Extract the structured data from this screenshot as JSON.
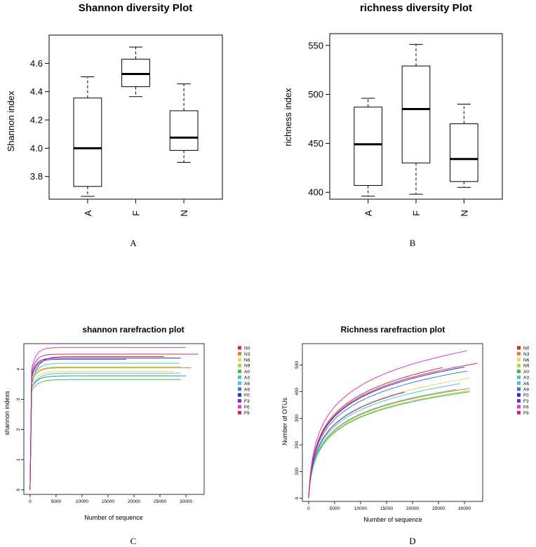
{
  "chart_data": [
    {
      "panel": "A",
      "type": "box",
      "title": "Shannon diversity Plot",
      "xlabel": "",
      "ylabel": "Shannon index",
      "ylim": [
        3.64,
        4.8
      ],
      "yticks": [
        3.8,
        4.0,
        4.2,
        4.4,
        4.6
      ],
      "ytick_labels": [
        "3.8",
        "4.0",
        "4.2",
        "4.4",
        "4.6"
      ],
      "categories": [
        "A",
        "F",
        "N"
      ],
      "boxes": [
        {
          "category": "A",
          "min": 3.66,
          "q1": 3.73,
          "median": 4.0,
          "q3": 4.355,
          "max": 4.505
        },
        {
          "category": "F",
          "min": 4.365,
          "q1": 4.435,
          "median": 4.525,
          "q3": 4.63,
          "max": 4.715
        },
        {
          "category": "N",
          "min": 3.9,
          "q1": 3.985,
          "median": 4.075,
          "q3": 4.265,
          "max": 4.455
        }
      ]
    },
    {
      "panel": "B",
      "type": "box",
      "title": "richness diversity Plot",
      "xlabel": "",
      "ylabel": "richness index",
      "ylim": [
        393,
        562
      ],
      "yticks": [
        400,
        450,
        500,
        550
      ],
      "ytick_labels": [
        "400",
        "450",
        "500",
        "550"
      ],
      "categories": [
        "A",
        "F",
        "N"
      ],
      "boxes": [
        {
          "category": "A",
          "min": 396,
          "q1": 407,
          "median": 449,
          "q3": 487,
          "max": 496
        },
        {
          "category": "F",
          "min": 398,
          "q1": 430,
          "median": 485,
          "q3": 529,
          "max": 551
        },
        {
          "category": "N",
          "min": 405,
          "q1": 411,
          "median": 434,
          "q3": 470,
          "max": 490
        }
      ]
    },
    {
      "panel": "C",
      "type": "line",
      "title": "shannon rarefraction plot",
      "xlabel": "Number of sequence",
      "ylabel": "shannon indexs",
      "xlim": [
        -1200,
        33500
      ],
      "ylim": [
        -0.15,
        4.85
      ],
      "xticks": [
        0,
        5000,
        10000,
        15000,
        20000,
        25000,
        30000
      ],
      "xtick_labels": [
        "0",
        "5000",
        "10000",
        "15000",
        "20000",
        "25000",
        "30000"
      ],
      "yticks": [
        0,
        1,
        2,
        3,
        4
      ],
      "ytick_labels": [
        "0",
        "1",
        "2",
        "3",
        "4"
      ],
      "series": [
        {
          "name": "N0",
          "color": "#d42a2a",
          "max_x": 25800,
          "final": 4.42,
          "start": 3.5,
          "rate": 1200
        },
        {
          "name": "N3",
          "color": "#e07b39",
          "max_x": 31000,
          "final": 4.05,
          "start": 3.6,
          "rate": 1100
        },
        {
          "name": "N6",
          "color": "#ecd64a",
          "max_x": 27500,
          "final": 3.93,
          "start": 3.5,
          "rate": 1200
        },
        {
          "name": "N9",
          "color": "#a8d44a",
          "max_x": 29000,
          "final": 4.08,
          "start": 3.6,
          "rate": 1100
        },
        {
          "name": "A0",
          "color": "#3fbf4a",
          "max_x": 29000,
          "final": 3.66,
          "start": 3.3,
          "rate": 1300
        },
        {
          "name": "A3",
          "color": "#4cc9a0",
          "max_x": 29000,
          "final": 3.87,
          "start": 3.4,
          "rate": 1300
        },
        {
          "name": "A6",
          "color": "#49c7d6",
          "max_x": 28800,
          "final": 4.2,
          "start": 3.6,
          "rate": 1100
        },
        {
          "name": "A9",
          "color": "#3a7fd6",
          "max_x": 30000,
          "final": 3.78,
          "start": 3.4,
          "rate": 1200
        },
        {
          "name": "F0",
          "color": "#2a33c9",
          "max_x": 29000,
          "final": 4.37,
          "start": 3.8,
          "rate": 900
        },
        {
          "name": "F3",
          "color": "#7a2ac4",
          "max_x": 18500,
          "final": 4.33,
          "start": 3.7,
          "rate": 900
        },
        {
          "name": "F6",
          "color": "#d13fd1",
          "max_x": 30000,
          "final": 4.72,
          "start": 4.0,
          "rate": 900
        },
        {
          "name": "F9",
          "color": "#c8286e",
          "max_x": 32400,
          "final": 4.5,
          "start": 3.9,
          "rate": 900
        }
      ]
    },
    {
      "panel": "D",
      "type": "line",
      "title": "Richness rarefraction plot",
      "xlabel": "Number of sequence",
      "ylabel": "Number of OTUs",
      "xlim": [
        -1200,
        33500
      ],
      "ylim": [
        -12,
        580
      ],
      "xticks": [
        0,
        5000,
        10000,
        15000,
        20000,
        25000,
        30000
      ],
      "xtick_labels": [
        "0",
        "5000",
        "10000",
        "15000",
        "20000",
        "25000",
        "30000"
      ],
      "yticks": [
        0,
        100,
        200,
        300,
        400,
        500
      ],
      "ytick_labels": [
        "0",
        "100",
        "200",
        "300",
        "400",
        "500"
      ],
      "series": [
        {
          "name": "N0",
          "color": "#d42a2a",
          "max_x": 25800,
          "final": 490
        },
        {
          "name": "N3",
          "color": "#e07b39",
          "max_x": 31000,
          "final": 412
        },
        {
          "name": "N6",
          "color": "#ecd64a",
          "max_x": 31000,
          "final": 450
        },
        {
          "name": "N9",
          "color": "#a8d44a",
          "max_x": 31000,
          "final": 403
        },
        {
          "name": "A0",
          "color": "#3fbf4a",
          "max_x": 31000,
          "final": 399
        },
        {
          "name": "A3",
          "color": "#4cc9a0",
          "max_x": 28500,
          "final": 408
        },
        {
          "name": "A6",
          "color": "#49c7d6",
          "max_x": 29200,
          "final": 430
        },
        {
          "name": "A9",
          "color": "#3a7fd6",
          "max_x": 30500,
          "final": 477
        },
        {
          "name": "F0",
          "color": "#2a33c9",
          "max_x": 30000,
          "final": 492
        },
        {
          "name": "F3",
          "color": "#7a2ac4",
          "max_x": 18500,
          "final": 398
        },
        {
          "name": "F6",
          "color": "#d13fd1",
          "max_x": 30500,
          "final": 553
        },
        {
          "name": "F9",
          "color": "#c8286e",
          "max_x": 32500,
          "final": 506
        }
      ]
    }
  ],
  "panel_labels": [
    "A",
    "B",
    "C",
    "D"
  ]
}
